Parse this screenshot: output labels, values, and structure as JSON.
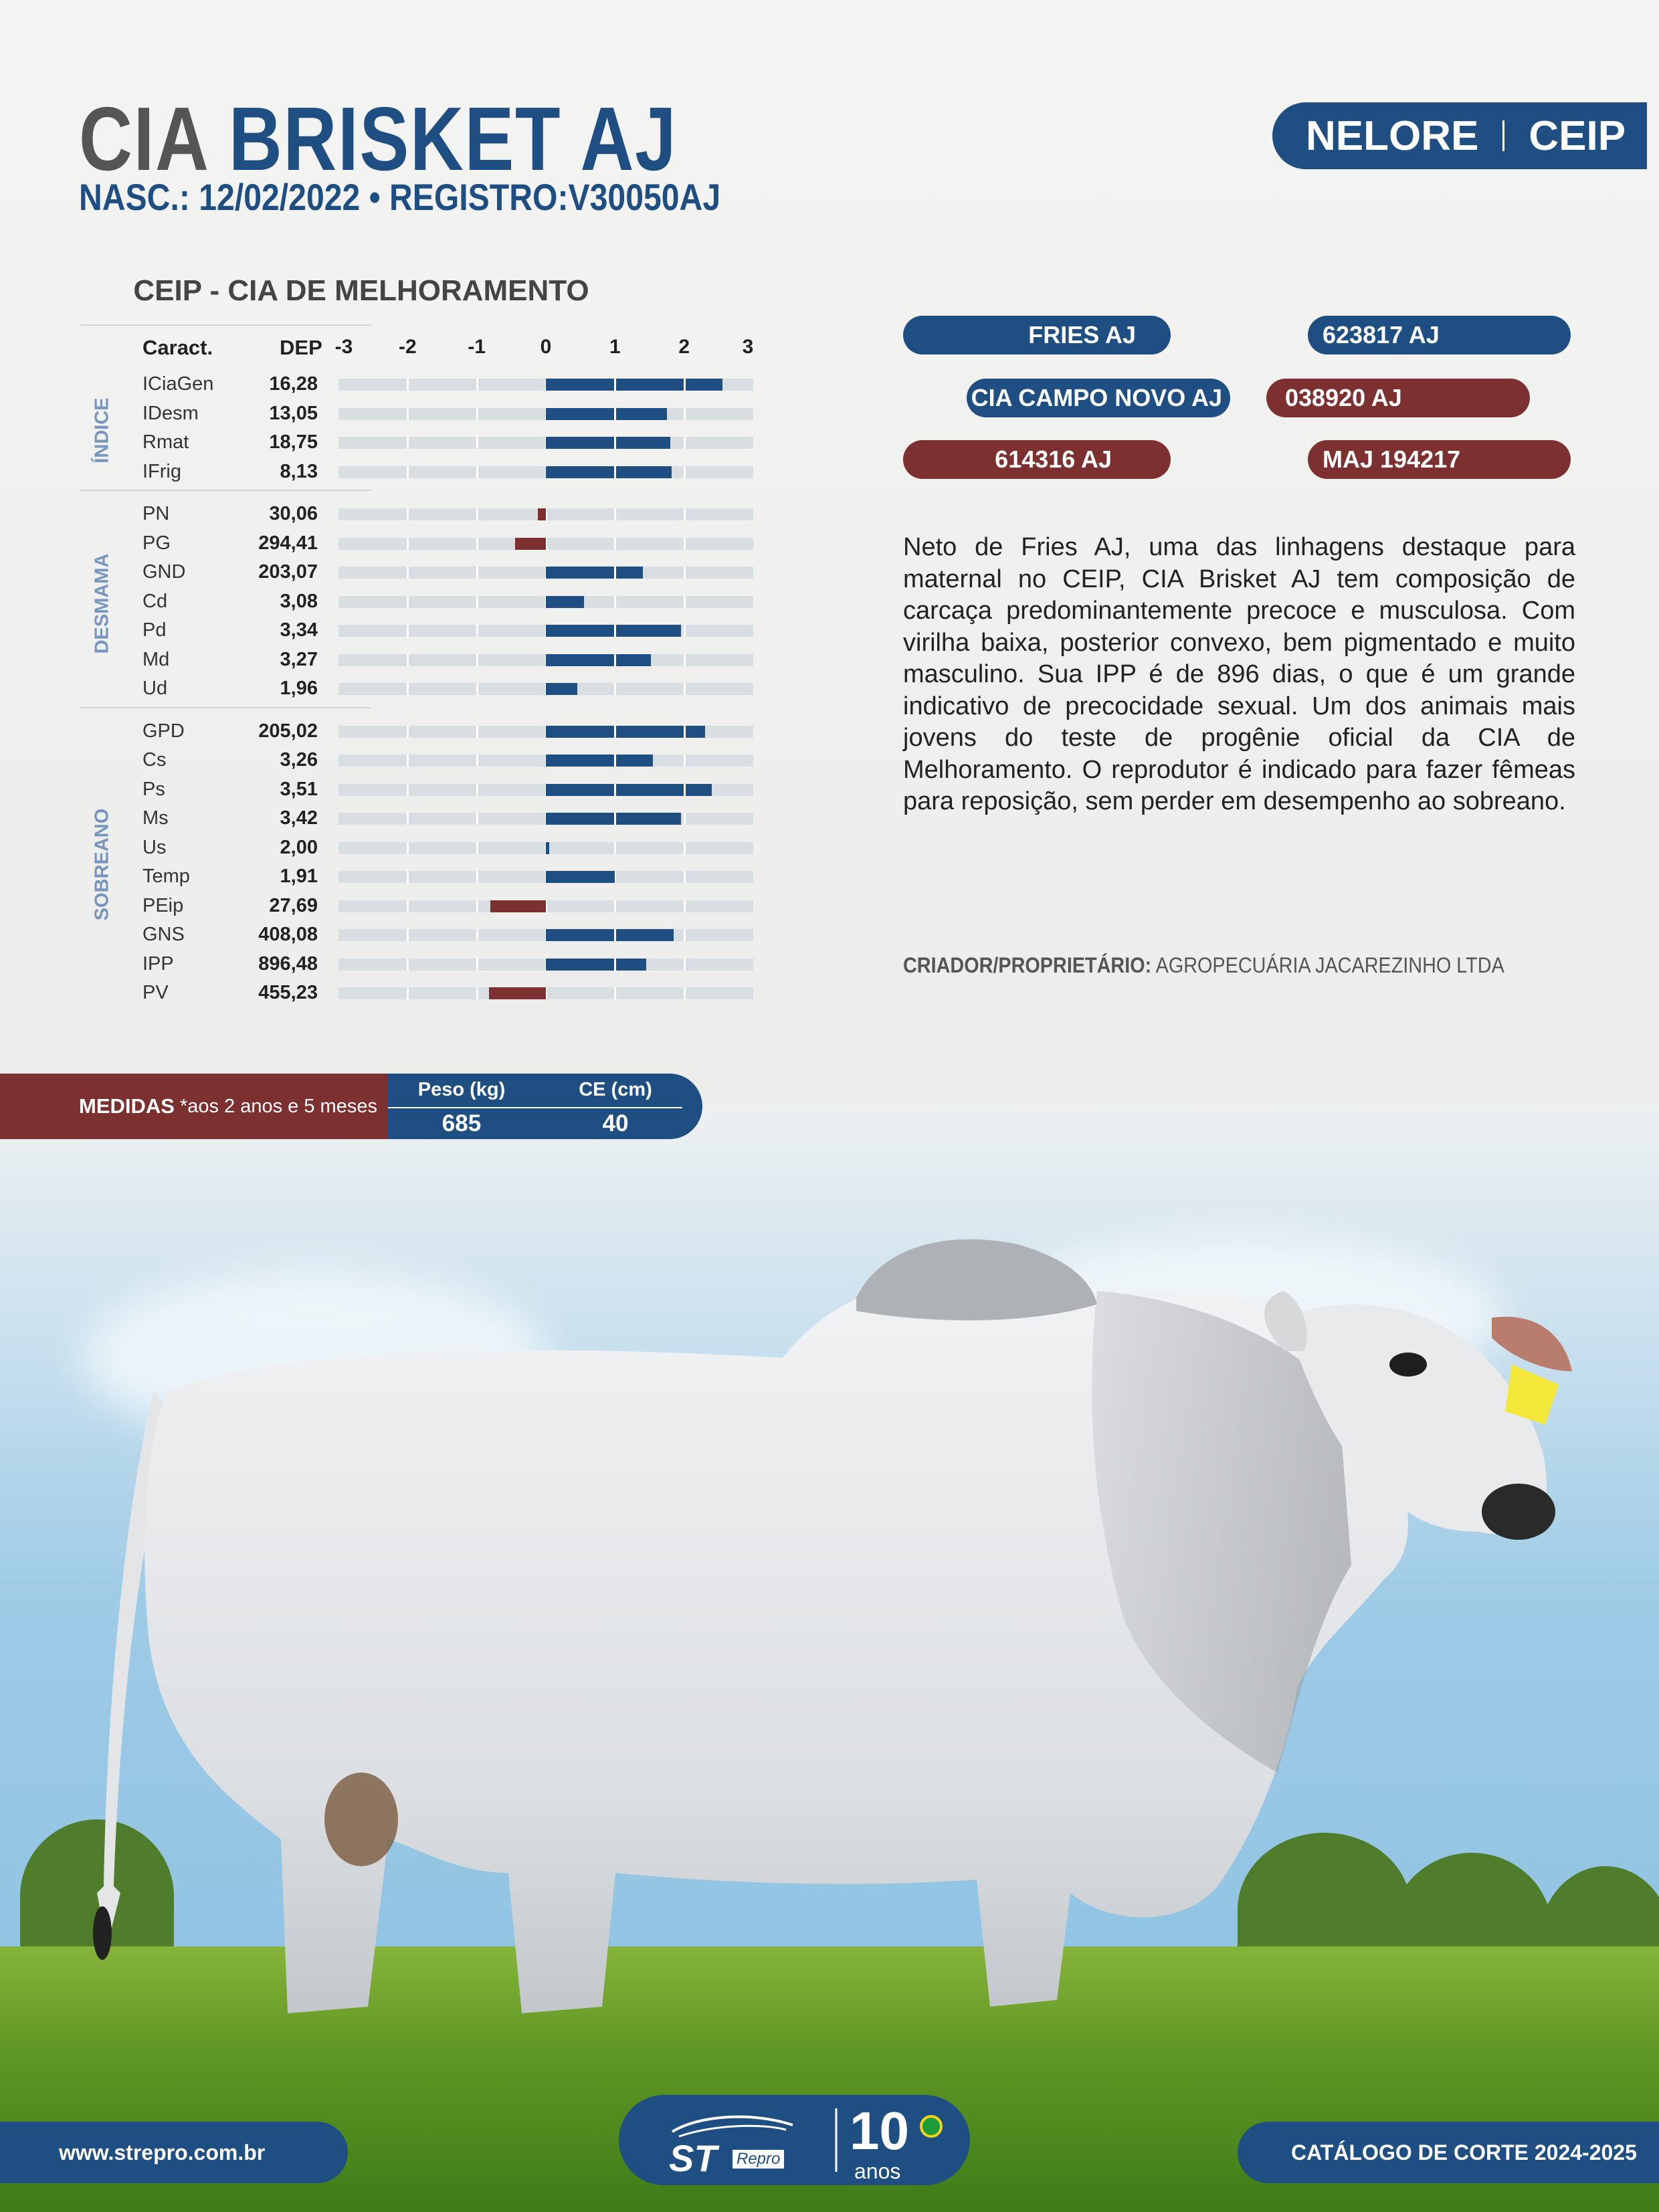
{
  "header": {
    "title_part1": "CIA",
    "title_part2": "BRISKET AJ",
    "birth_label": "NASC.:",
    "birth_date": "12/02/2022",
    "bullet": "•",
    "registry_label": "REGISTRO:",
    "registry": "V30050AJ"
  },
  "breed_badge": {
    "breed": "NELORE",
    "program": "CEIP"
  },
  "chart_data": {
    "type": "bar",
    "title": "CEIP - CIA DE MELHORAMENTO",
    "col_caract": "Caract.",
    "col_dep": "DEP",
    "ticks": [
      "-3",
      "-2",
      "-1",
      "0",
      "1",
      "2",
      "3"
    ],
    "xlim": [
      -3,
      3
    ],
    "groups": [
      {
        "name": "ÍNDICE",
        "rows": [
          {
            "name": "ICiaGen",
            "value": "16,28",
            "bar": 2.55,
            "color": "#1f4e82"
          },
          {
            "name": "IDesm",
            "value": "13,05",
            "bar": 1.75,
            "color": "#1f4e82"
          },
          {
            "name": "Rmat",
            "value": "18,75",
            "bar": 1.8,
            "color": "#1f4e82"
          },
          {
            "name": "IFrig",
            "value": "8,13",
            "bar": 1.82,
            "color": "#1f4e82"
          }
        ]
      },
      {
        "name": "DESMAMA",
        "rows": [
          {
            "name": "PN",
            "value": "30,06",
            "bar": -0.12,
            "color": "#7d3030"
          },
          {
            "name": "PG",
            "value": "294,41",
            "bar": -0.45,
            "color": "#7d3030"
          },
          {
            "name": "GND",
            "value": "203,07",
            "bar": 1.4,
            "color": "#1f4e82"
          },
          {
            "name": "Cd",
            "value": "3,08",
            "bar": 0.55,
            "color": "#1f4e82"
          },
          {
            "name": "Pd",
            "value": "3,34",
            "bar": 1.95,
            "color": "#1f4e82"
          },
          {
            "name": "Md",
            "value": "3,27",
            "bar": 1.52,
            "color": "#1f4e82"
          },
          {
            "name": "Ud",
            "value": "1,96",
            "bar": 0.45,
            "color": "#1f4e82"
          }
        ]
      },
      {
        "name": "SOBREANO",
        "rows": [
          {
            "name": "GPD",
            "value": "205,02",
            "bar": 2.3,
            "color": "#1f4e82"
          },
          {
            "name": "Cs",
            "value": "3,26",
            "bar": 1.55,
            "color": "#1f4e82"
          },
          {
            "name": "Ps",
            "value": "3,51",
            "bar": 2.4,
            "color": "#1f4e82"
          },
          {
            "name": "Ms",
            "value": "3,42",
            "bar": 1.95,
            "color": "#1f4e82"
          },
          {
            "name": "Us",
            "value": "2,00",
            "bar": 0.05,
            "color": "#1f4e82"
          },
          {
            "name": "Temp",
            "value": "1,91",
            "bar": 1.0,
            "color": "#1f4e82"
          },
          {
            "name": "PEip",
            "value": "27,69",
            "bar": -0.8,
            "color": "#7d3030"
          },
          {
            "name": "GNS",
            "value": "408,08",
            "bar": 1.85,
            "color": "#1f4e82"
          },
          {
            "name": "IPP",
            "value": "896,48",
            "bar": 1.45,
            "color": "#1f4e82"
          },
          {
            "name": "PV",
            "value": "455,23",
            "bar": -0.82,
            "color": "#7d3030"
          }
        ]
      }
    ]
  },
  "pedigree": {
    "sire": "FRIES AJ",
    "sire_reg": "623817 AJ",
    "dam_sire": "CIA CAMPO NOVO AJ",
    "dam_sire_reg": "038920 AJ",
    "dam": "614316 AJ",
    "dam_reg": "MAJ 194217"
  },
  "description": "Neto de Fries AJ, uma das linhagens destaque para maternal no CEIP, CIA Brisket AJ tem composição de carcaça predominantemente precoce e musculosa. Com virilha baixa, posterior convexo, bem pigmentado e muito masculino. Sua IPP é de 896 dias, o que é um grande indicativo de precocidade sexual. Um dos animais mais jovens do teste de progênie oficial da CIA de Melhoramento. O reprodutor é indicado para fazer fêmeas para reposição, sem perder em desempenho ao sobreano.",
  "owner": {
    "label": "CRIADOR/PROPRIETÁRIO:",
    "name": "AGROPECUÁRIA JACAREZINHO LTDA"
  },
  "measures": {
    "label": "MEDIDAS",
    "note": "*aos 2 anos e 5 meses",
    "weight_label": "Peso (kg)",
    "weight": "685",
    "ce_label": "CE (cm)",
    "ce": "40"
  },
  "footer": {
    "website": "www.strepro.com.br",
    "logo_text": "ST",
    "logo_sub": "Repro",
    "anniv_num": "10",
    "anniv_word": "anos",
    "catalog": "CATÁLOGO DE CORTE 2024-2025"
  },
  "colors": {
    "blue": "#1f4e82",
    "red": "#7d3030",
    "grey_title": "#555555"
  }
}
